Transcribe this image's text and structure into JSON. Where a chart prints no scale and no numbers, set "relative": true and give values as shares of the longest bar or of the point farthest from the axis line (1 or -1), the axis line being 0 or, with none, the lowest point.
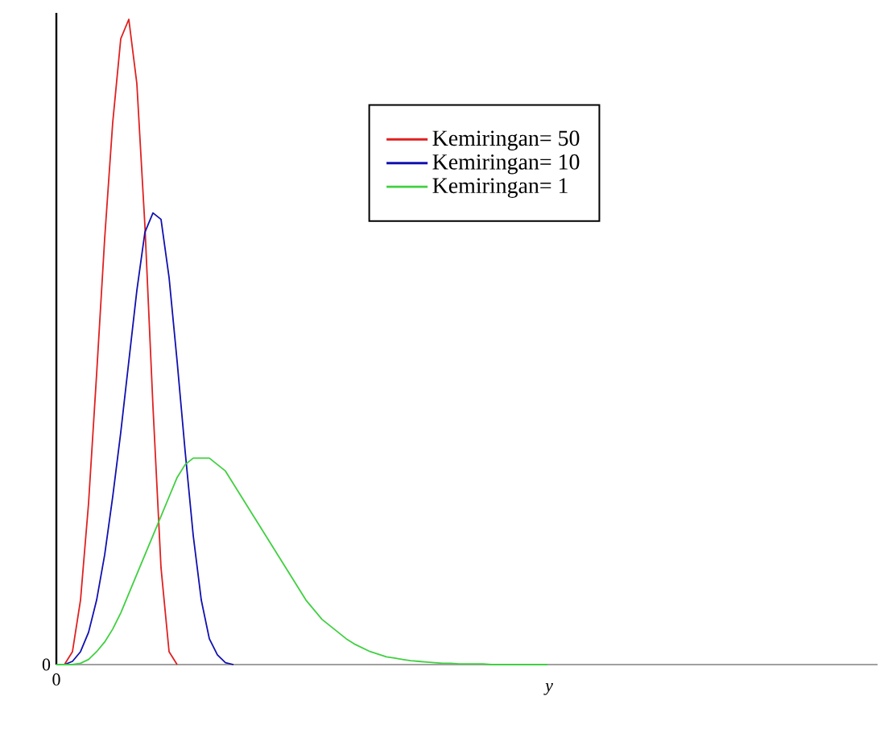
{
  "chart_data": {
    "type": "line",
    "xlabel": "y",
    "relative": true,
    "legend": "top right",
    "marker": "none",
    "line_style": "solid",
    "annotations": [
      "0",
      "0"
    ],
    "categories": [
      null,
      null,
      null,
      null,
      null,
      null,
      null,
      null,
      null,
      null,
      null,
      null,
      null,
      null,
      null,
      null,
      null,
      null,
      null,
      null,
      null,
      null,
      null,
      null,
      null,
      null,
      null,
      null,
      null,
      null,
      null,
      null,
      null,
      null,
      null,
      null,
      null,
      null,
      null,
      null,
      null,
      null,
      null,
      null,
      null,
      null,
      null,
      null,
      null,
      null,
      null,
      null,
      null,
      null,
      null,
      null,
      null,
      null,
      null,
      null,
      null,
      null,
      null,
      null,
      null,
      null,
      null,
      null,
      null,
      null,
      null,
      null,
      null,
      null,
      null,
      null,
      null,
      null,
      null,
      null,
      null,
      null,
      null,
      null,
      null,
      null,
      null,
      null,
      null,
      null,
      null,
      null,
      null,
      null,
      null,
      null,
      null,
      null,
      null,
      null,
      null,
      null,
      null
    ],
    "series": [
      {
        "name": "Kemiringan= 50",
        "color": "#e02020",
        "values": [
          0,
          0,
          0.02,
          0.1,
          0.25,
          0.45,
          0.66,
          0.84,
          0.97,
          1,
          0.9,
          0.68,
          0.4,
          0.15,
          0.02,
          0,
          null,
          null,
          null,
          null,
          null,
          null,
          null,
          null,
          null,
          null,
          null,
          null,
          null,
          null,
          null,
          null,
          null,
          null,
          null,
          null,
          null,
          null,
          null,
          null,
          null,
          null,
          null,
          null,
          null,
          null,
          null,
          null,
          null,
          null,
          null,
          null,
          null,
          null,
          null,
          null,
          null,
          null,
          null,
          null,
          null,
          null,
          null,
          null,
          null,
          null,
          null,
          null,
          null,
          null,
          null,
          null,
          null,
          null,
          null,
          null,
          null,
          null,
          null,
          null,
          null,
          null,
          null,
          null,
          null,
          null,
          null,
          null,
          null,
          null,
          null,
          null,
          null,
          null,
          null,
          null,
          null,
          null,
          null,
          null,
          null,
          null,
          null
        ]
      },
      {
        "name": "Kemiringan= 10",
        "color": "#1010b0",
        "values": [
          0,
          0,
          0.005,
          0.02,
          0.05,
          0.1,
          0.17,
          0.26,
          0.36,
          0.47,
          0.58,
          0.67,
          0.7,
          0.69,
          0.6,
          0.47,
          0.33,
          0.2,
          0.1,
          0.04,
          0.015,
          0.003,
          0,
          null,
          null,
          null,
          null,
          null,
          null,
          null,
          null,
          null,
          null,
          null,
          null,
          null,
          null,
          null,
          null,
          null,
          null,
          null,
          null,
          null,
          null,
          null,
          null,
          null,
          null,
          null,
          null,
          null,
          null,
          null,
          null,
          null,
          null,
          null,
          null,
          null,
          null,
          null,
          null,
          null,
          null,
          null,
          null,
          null,
          null,
          null,
          null,
          null,
          null,
          null,
          null,
          null,
          null,
          null,
          null,
          null,
          null,
          null,
          null,
          null,
          null,
          null,
          null,
          null,
          null,
          null,
          null,
          null,
          null,
          null,
          null,
          null,
          null,
          null,
          null,
          null,
          null,
          null,
          null
        ]
      },
      {
        "name": "Kemiringan= 1",
        "color": "#40d040",
        "values": [
          0,
          0,
          0,
          0.002,
          0.008,
          0.02,
          0.035,
          0.055,
          0.08,
          0.11,
          0.14,
          0.17,
          0.2,
          0.23,
          0.26,
          0.29,
          0.31,
          0.32,
          0.32,
          0.32,
          0.31,
          0.3,
          0.28,
          0.26,
          0.24,
          0.22,
          0.2,
          0.18,
          0.16,
          0.14,
          0.12,
          0.1,
          0.085,
          0.07,
          0.06,
          0.05,
          0.04,
          0.032,
          0.026,
          0.02,
          0.016,
          0.012,
          0.01,
          0.008,
          0.006,
          0.005,
          0.004,
          0.003,
          0.002,
          0.002,
          0.001,
          0.001,
          0.001,
          0.001,
          0,
          0,
          0,
          0,
          0,
          0,
          0,
          0,
          null,
          null,
          null,
          null,
          null,
          null,
          null,
          null,
          null,
          null,
          null,
          null,
          null,
          null,
          null,
          null,
          null,
          null,
          null,
          null,
          null,
          null,
          null,
          null,
          null,
          null,
          null,
          null,
          null,
          null,
          null,
          null,
          null,
          null,
          null,
          null,
          null,
          null,
          null,
          null,
          null
        ]
      }
    ]
  }
}
